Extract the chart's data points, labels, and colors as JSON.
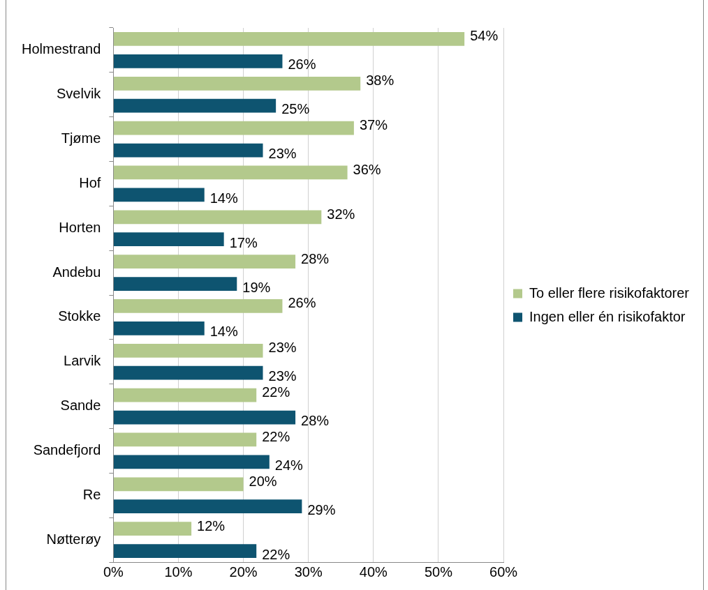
{
  "chart_data": {
    "type": "bar",
    "orientation": "horizontal",
    "categories": [
      "Holmestrand",
      "Svelvik",
      "Tjøme",
      "Hof",
      "Horten",
      "Andebu",
      "Stokke",
      "Larvik",
      "Sande",
      "Sandefjord",
      "Re",
      "Nøtterøy"
    ],
    "series": [
      {
        "name": "To eller flere risikofaktorer",
        "color": "#b3c98c",
        "values": [
          54,
          38,
          37,
          36,
          32,
          28,
          26,
          23,
          22,
          22,
          20,
          12
        ],
        "value_labels": [
          "54%",
          "38%",
          "37%",
          "36%",
          "32%",
          "28%",
          "26%",
          "23%",
          "22%",
          "22%",
          "20%",
          "12%"
        ]
      },
      {
        "name": "Ingen eller én risikofaktor",
        "color": "#0e5470",
        "values": [
          26,
          25,
          23,
          14,
          17,
          19,
          14,
          23,
          28,
          24,
          29,
          22
        ],
        "value_labels": [
          "26%",
          "25%",
          "23%",
          "14%",
          "17%",
          "19%",
          "14%",
          "23%",
          "28%",
          "24%",
          "29%",
          "22%"
        ]
      }
    ],
    "xlim": [
      0,
      60
    ],
    "xticks": [
      {
        "value": 0,
        "label": "0%"
      },
      {
        "value": 10,
        "label": "10%"
      },
      {
        "value": 20,
        "label": "20%"
      },
      {
        "value": 30,
        "label": "30%"
      },
      {
        "value": 40,
        "label": "40%"
      },
      {
        "value": 50,
        "label": "50%"
      },
      {
        "value": 60,
        "label": "60%"
      }
    ],
    "grid": "x",
    "legend": "right"
  }
}
